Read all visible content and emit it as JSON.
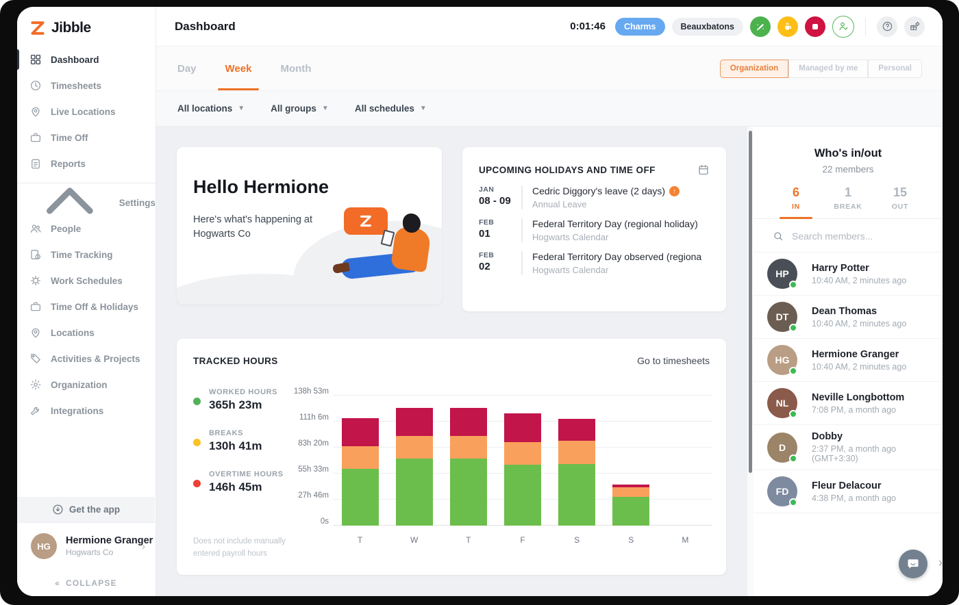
{
  "app": {
    "brand": "Jibble"
  },
  "colors": {
    "accent": "#ee7225",
    "brand_orange": "#f26b27",
    "worked_green": "#6cbe4c",
    "break_bar_orange": "#f9a05c",
    "overtime_bar_crimson": "#c2154a",
    "break_dot_yellow": "#fcc223",
    "overtime_dot_red": "#ee4035",
    "worked_dot_green": "#53b158",
    "activity_pill_blue": "#66a9f0"
  },
  "sidebar": {
    "items": [
      {
        "label": "Dashboard",
        "icon": "dashboard-grid-icon",
        "active": true
      },
      {
        "label": "Timesheets",
        "icon": "clock-icon",
        "active": false
      },
      {
        "label": "Live Locations",
        "icon": "location-pin-icon",
        "active": false
      },
      {
        "label": "Time Off",
        "icon": "briefcase-icon",
        "active": false
      },
      {
        "label": "Reports",
        "icon": "clipboard-icon",
        "active": false
      }
    ],
    "settings_label": "Settings",
    "settings_items": [
      {
        "label": "People",
        "icon": "people-icon"
      },
      {
        "label": "Time Tracking",
        "icon": "time-tracking-icon"
      },
      {
        "label": "Work Schedules",
        "icon": "work-schedules-icon"
      },
      {
        "label": "Time Off & Holidays",
        "icon": "briefcase-icon"
      },
      {
        "label": "Locations",
        "icon": "location-pin-icon"
      },
      {
        "label": "Activities & Projects",
        "icon": "tag-icon"
      },
      {
        "label": "Organization",
        "icon": "gear-icon"
      },
      {
        "label": "Integrations",
        "icon": "integrations-icon"
      }
    ],
    "get_app_label": "Get the app",
    "user": {
      "name": "Hermione Granger",
      "company": "Hogwarts Co",
      "initials": "HG"
    },
    "collapse_label": "COLLAPSE"
  },
  "header": {
    "title": "Dashboard",
    "timer": "0:01:46",
    "activity_pill": "Charms",
    "team_pill": "Beauxbatons"
  },
  "tabsbar": {
    "tabs": [
      {
        "label": "Day",
        "active": false
      },
      {
        "label": "Week",
        "active": true
      },
      {
        "label": "Month",
        "active": false
      }
    ],
    "scope_switch": [
      {
        "label": "Organization",
        "active": true
      },
      {
        "label": "Managed by me",
        "active": false
      },
      {
        "label": "Personal",
        "active": false
      }
    ]
  },
  "filters": [
    {
      "label": "All locations"
    },
    {
      "label": "All groups"
    },
    {
      "label": "All schedules"
    }
  ],
  "hello_card": {
    "greeting": "Hello Hermione",
    "subtitle": "Here's what's happening at Hogwarts Co"
  },
  "holidays_card": {
    "title": "UPCOMING HOLIDAYS AND TIME OFF",
    "items": [
      {
        "month": "JAN",
        "day": "08 - 09",
        "title": "Cedric Diggory's leave (2 days)",
        "badge": true,
        "subtitle": "Annual Leave"
      },
      {
        "month": "FEB",
        "day": "01",
        "title": "Federal Territory Day (regional holiday)",
        "badge": false,
        "subtitle": "Hogwarts Calendar"
      },
      {
        "month": "FEB",
        "day": "02",
        "title": "Federal Territory Day observed (regiona",
        "badge": false,
        "subtitle": "Hogwarts Calendar"
      }
    ]
  },
  "tracked_card": {
    "title": "TRACKED HOURS",
    "link": "Go to timesheets",
    "legend": [
      {
        "label": "WORKED HOURS",
        "value": "365h 23m",
        "dot_color": "#53b158"
      },
      {
        "label": "BREAKS",
        "value": "130h 41m",
        "dot_color": "#fcc223"
      },
      {
        "label": "OVERTIME HOURS",
        "value": "146h 45m",
        "dot_color": "#ee4035"
      }
    ],
    "footnote_line1": "Does not include manually",
    "footnote_line2": "entered payroll hours"
  },
  "chart_data": {
    "type": "bar",
    "stacked": true,
    "title": "TRACKED HOURS",
    "categories": [
      "T",
      "W",
      "T",
      "F",
      "S",
      "S",
      "M"
    ],
    "series": [
      {
        "name": "Worked hours",
        "color": "#6cbe4c",
        "values": [
          61,
          72,
          72,
          65,
          66,
          31,
          0
        ]
      },
      {
        "name": "Breaks",
        "color": "#f9a05c",
        "values": [
          24,
          24,
          24,
          24,
          25,
          10,
          0
        ]
      },
      {
        "name": "Overtime hours",
        "color": "#c2154a",
        "values": [
          30,
          30,
          30,
          31,
          23,
          3,
          0
        ]
      }
    ],
    "yticks": [
      "0s",
      "27h 46m",
      "55h 33m",
      "83h 20m",
      "111h 6m",
      "138h 53m"
    ],
    "ylim": [
      0,
      138.88
    ],
    "unit": "hours",
    "grid": true,
    "legend_position": "left"
  },
  "whos_inout": {
    "title": "Who's in/out",
    "members_count": "22 members",
    "tabs": [
      {
        "count": "6",
        "label": "IN",
        "active": true
      },
      {
        "count": "1",
        "label": "BREAK",
        "active": false
      },
      {
        "count": "15",
        "label": "OUT",
        "active": false
      }
    ],
    "search_placeholder": "Search members...",
    "members": [
      {
        "name": "Harry Potter",
        "meta": "10:40 AM, 2 minutes ago",
        "initials": "HP",
        "avatar_color": "#4a4f57"
      },
      {
        "name": "Dean Thomas",
        "meta": "10:40 AM, 2 minutes ago",
        "initials": "DT",
        "avatar_color": "#6b5d52"
      },
      {
        "name": "Hermione Granger",
        "meta": "10:40 AM, 2 minutes ago",
        "initials": "HG",
        "avatar_color": "#b99d84"
      },
      {
        "name": "Neville Longbottom",
        "meta": "7:08 PM, a month ago",
        "initials": "NL",
        "avatar_color": "#8a5a4a"
      },
      {
        "name": "Dobby",
        "meta": "2:37 PM, a month ago (GMT+3:30)",
        "initials": "D",
        "avatar_color": "#9c8468"
      },
      {
        "name": "Fleur Delacour",
        "meta": "4:38 PM, a month ago",
        "initials": "FD",
        "avatar_color": "#7d8aa0"
      }
    ]
  }
}
